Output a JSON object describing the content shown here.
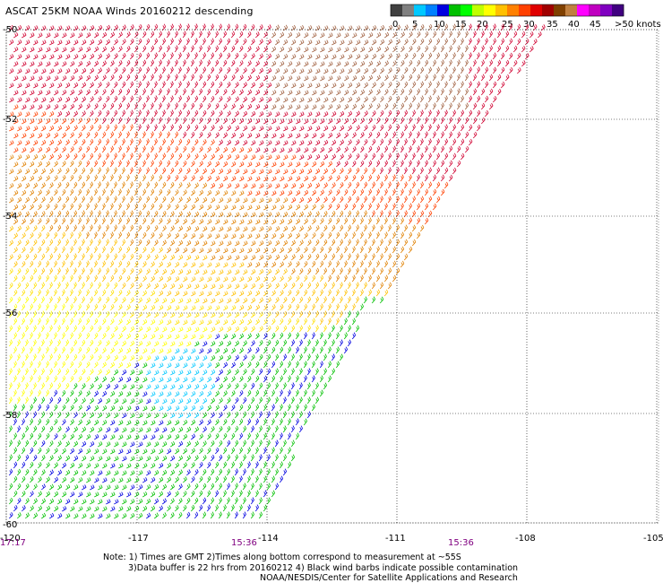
{
  "title": "ASCAT 25KM NOAA Winds 20160212 descending",
  "legend": {
    "labels": [
      "0",
      "5",
      "10",
      "15",
      "20",
      "25",
      "30",
      "35",
      "40",
      "45",
      ">50 knots"
    ],
    "colors": [
      "#404040",
      "#808080",
      "#00c8ff",
      "#0080ff",
      "#0000e0",
      "#00c000",
      "#00ff00",
      "#c0ff00",
      "#ffff00",
      "#ffc000",
      "#ff8000",
      "#ff4000",
      "#e00000",
      "#a00000",
      "#804000",
      "#c08040",
      "#ff00ff",
      "#c000c0",
      "#8000c0",
      "#400080"
    ]
  },
  "axes": {
    "lon_labels": [
      "-120",
      "-117",
      "-114",
      "-111",
      "-108",
      "-105"
    ],
    "lat_labels": [
      "-50",
      "-52",
      "-54",
      "-56",
      "-58",
      "-60"
    ],
    "time_labels": [
      "17:17",
      "15:36",
      "15:36"
    ]
  },
  "notes": [
    "Note: 1) Times are GMT 2)Times along bottom correspond to measurement at ~55S",
    "3)Data buffer is 22 hrs from 20160212 4) Black wind barbs indicate possible contamination",
    "NOAA/NESDIS/Center for Satellite Applications and Research"
  ],
  "colors": {
    "time_label": "#800080",
    "grid": "#000000"
  }
}
